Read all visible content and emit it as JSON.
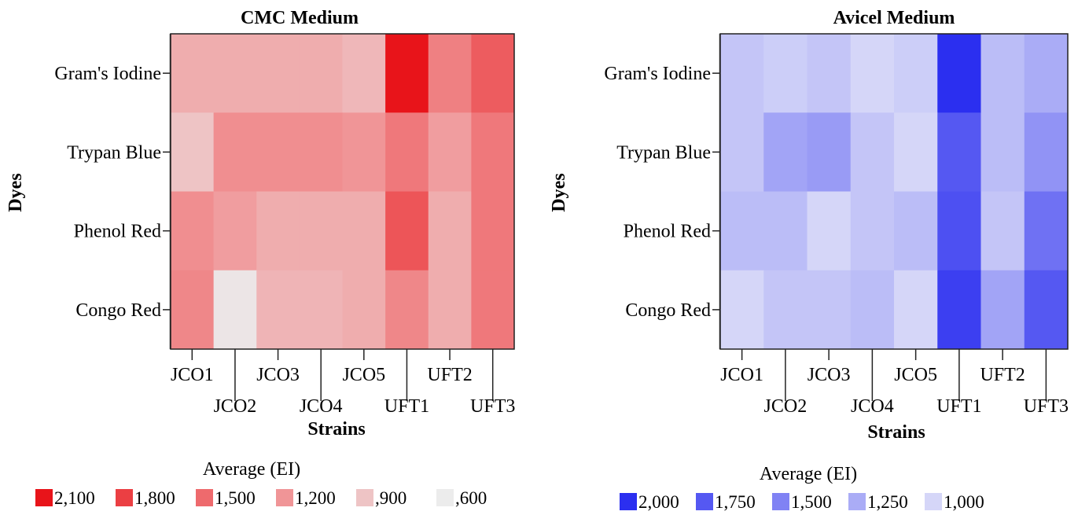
{
  "chart_data": [
    {
      "type": "heatmap",
      "title": "CMC Medium",
      "xlabel": "Strains",
      "ylabel": "Dyes",
      "x_categories": [
        "JCO1",
        "JCO2",
        "JCO3",
        "JCO4",
        "JCO5",
        "UFT1",
        "UFT2",
        "UFT3"
      ],
      "y_categories": [
        "Gram's Iodine",
        "Trypan Blue",
        "Phenol Red",
        "Congo Red"
      ],
      "values": [
        [
          1050,
          1050,
          1050,
          1050,
          980,
          2100,
          1350,
          1600
        ],
        [
          900,
          1250,
          1250,
          1250,
          1200,
          1400,
          1150,
          1400
        ],
        [
          1250,
          1150,
          1050,
          1050,
          1050,
          1650,
          1050,
          1400
        ],
        [
          1300,
          650,
          1000,
          1000,
          1050,
          1300,
          1050,
          1400
        ]
      ],
      "legend": {
        "title": "Average (EI)",
        "items": [
          {
            "label": "2,100",
            "color": "#e8141a"
          },
          {
            "label": "1,800",
            "color": "#eb3f43"
          },
          {
            "label": "1,500",
            "color": "#ee6a6d"
          },
          {
            "label": "1,200",
            "color": "#f09597"
          },
          {
            "label": ",900",
            "color": "#eec4c5"
          },
          {
            "label": ",600",
            "color": "#ececec"
          }
        ]
      }
    },
    {
      "type": "heatmap",
      "title": "Avicel Medium",
      "xlabel": "Strains",
      "ylabel": "Dyes",
      "x_categories": [
        "JCO1",
        "JCO2",
        "JCO3",
        "JCO4",
        "JCO5",
        "UFT1",
        "UFT2",
        "UFT3"
      ],
      "y_categories": [
        "Gram's Iodine",
        "Trypan Blue",
        "Phenol Red",
        "Congo Red"
      ],
      "values": [
        [
          1100,
          1050,
          1100,
          980,
          1050,
          2050,
          1150,
          1250
        ],
        [
          1100,
          1300,
          1350,
          1100,
          1000,
          1750,
          1150,
          1400
        ],
        [
          1150,
          1150,
          980,
          1100,
          1150,
          1800,
          1100,
          1600
        ],
        [
          1000,
          1100,
          1100,
          1150,
          1000,
          1900,
          1300,
          1750
        ]
      ],
      "legend": {
        "title": "Average (EI)",
        "items": [
          {
            "label": "2,000",
            "color": "#2b2ff0"
          },
          {
            "label": "1,750",
            "color": "#5558f2"
          },
          {
            "label": "1,500",
            "color": "#8082f4"
          },
          {
            "label": "1,250",
            "color": "#aaacf6"
          },
          {
            "label": "1,000",
            "color": "#d5d6f8"
          }
        ]
      }
    }
  ]
}
